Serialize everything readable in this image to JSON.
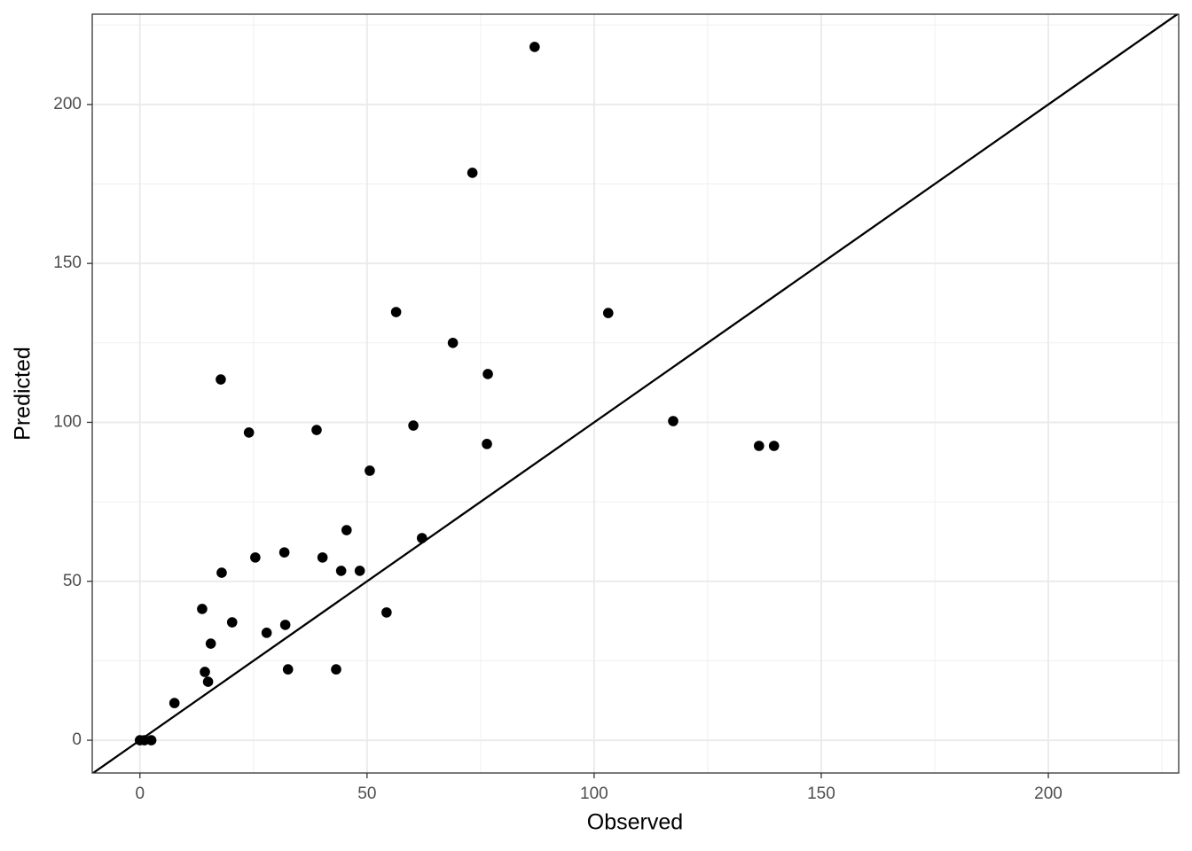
{
  "chart_data": {
    "type": "scatter",
    "x_label": "Observed",
    "y_label": "Predicted",
    "x": [
      0,
      1,
      2.5,
      7.6,
      13.7,
      14.3,
      15.0,
      15.6,
      17.8,
      18.0,
      20.3,
      24.0,
      25.4,
      27.9,
      31.8,
      32.0,
      32.6,
      38.9,
      40.2,
      43.2,
      44.3,
      45.5,
      48.4,
      50.6,
      54.3,
      56.4,
      60.2,
      62.1,
      68.9,
      73.2,
      76.4,
      76.6,
      86.9,
      103.1,
      117.4,
      136.3,
      139.6
    ],
    "series": [
      {
        "name": "Predicted",
        "color": "#000000",
        "values": [
          0,
          0,
          0,
          11.7,
          41.3,
          21.5,
          18.4,
          30.4,
          113.5,
          52.7,
          37.1,
          96.8,
          57.5,
          33.8,
          59.1,
          36.3,
          22.3,
          97.6,
          57.5,
          22.3,
          53.3,
          66.1,
          53.3,
          84.8,
          40.2,
          134.7,
          99.0,
          63.6,
          125.0,
          178.5,
          93.2,
          115.2,
          218.1,
          134.4,
          100.4,
          92.6,
          92.6
        ]
      }
    ],
    "xlim": [
      -10.5,
      228.7
    ],
    "ylim": [
      -10.3,
      228.4
    ],
    "xticks": [
      0,
      50,
      100,
      150,
      200
    ],
    "yticks": [
      0,
      50,
      100,
      150,
      200
    ],
    "xminor": [
      25,
      75,
      125,
      175,
      225
    ],
    "yminor": [
      25,
      75,
      125,
      175,
      225
    ],
    "grid": true,
    "abline": {
      "slope": 1,
      "intercept": 0,
      "color": "#000000"
    }
  }
}
